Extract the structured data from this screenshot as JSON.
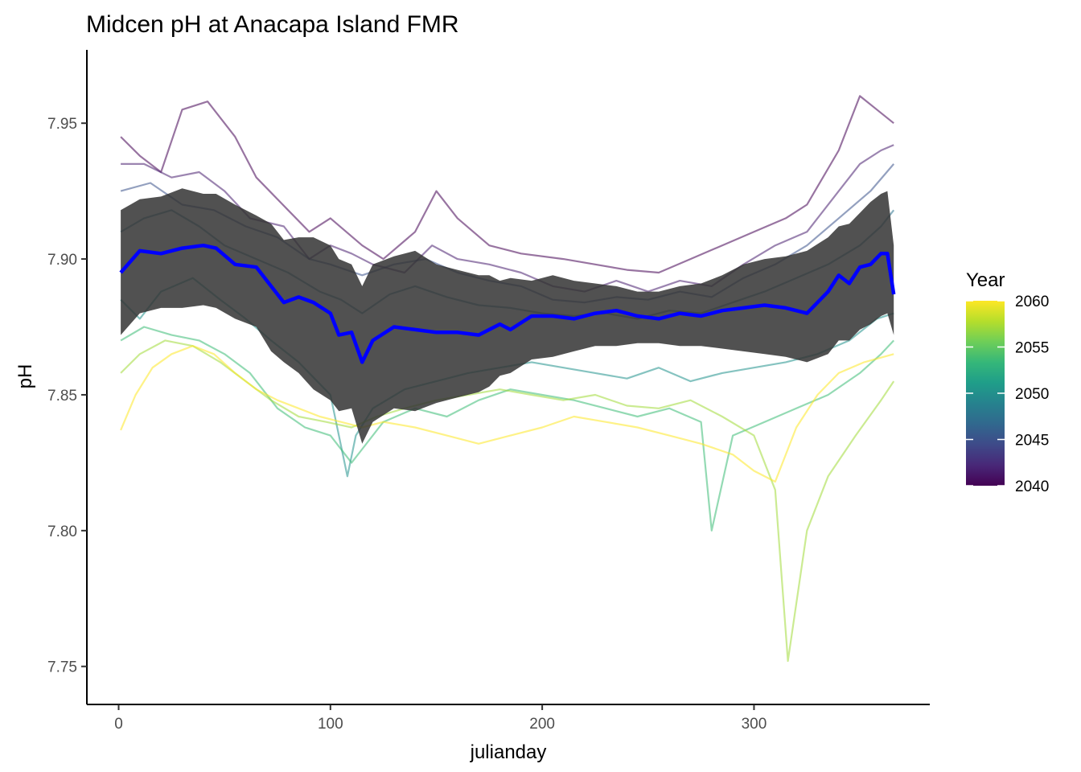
{
  "chart_data": {
    "type": "line",
    "title": "Midcen pH at Anacapa Island FMR",
    "xlabel": "julianday",
    "ylabel": "pH",
    "xlim": [
      -15,
      383
    ],
    "ylim": [
      7.736,
      7.977
    ],
    "x_ticks": [
      0,
      100,
      200,
      300
    ],
    "x_tick_labels": [
      "0",
      "100",
      "200",
      "300"
    ],
    "y_ticks": [
      7.75,
      7.8,
      7.85,
      7.9,
      7.95
    ],
    "y_tick_labels": [
      "7.75",
      "7.80",
      "7.85",
      "7.90",
      "7.95"
    ],
    "grid": false,
    "legend": {
      "title": "Year",
      "position": "right",
      "type": "colorbar",
      "range": [
        2040,
        2060
      ],
      "ticks": [
        "2040",
        "2045",
        "2050",
        "2055",
        "2060"
      ],
      "palette": [
        "#440154",
        "#482878",
        "#3e4a89",
        "#31688e",
        "#26828e",
        "#1f9e89",
        "#35b779",
        "#6ece58",
        "#b5de2b",
        "#fde725"
      ]
    },
    "series": [
      {
        "kind": "mean",
        "color": "#0000ff",
        "x": [
          1,
          10,
          20,
          30,
          40,
          46,
          55,
          65,
          72,
          78,
          85,
          92,
          100,
          104,
          110,
          115,
          120,
          130,
          140,
          150,
          160,
          170,
          175,
          180,
          185,
          195,
          205,
          215,
          225,
          235,
          245,
          255,
          265,
          275,
          285,
          295,
          305,
          315,
          325,
          335,
          340,
          345,
          350,
          355,
          360,
          363,
          366
        ],
        "y": [
          7.895,
          7.903,
          7.902,
          7.904,
          7.905,
          7.904,
          7.898,
          7.897,
          7.89,
          7.884,
          7.886,
          7.884,
          7.88,
          7.872,
          7.873,
          7.862,
          7.87,
          7.875,
          7.874,
          7.873,
          7.873,
          7.872,
          7.874,
          7.876,
          7.874,
          7.879,
          7.879,
          7.878,
          7.88,
          7.881,
          7.879,
          7.878,
          7.88,
          7.879,
          7.881,
          7.882,
          7.883,
          7.882,
          7.88,
          7.888,
          7.894,
          7.891,
          7.897,
          7.898,
          7.902,
          7.902,
          7.887
        ]
      },
      {
        "kind": "ribbon",
        "color": "#333333",
        "x": [
          1,
          10,
          20,
          30,
          40,
          46,
          55,
          65,
          72,
          78,
          85,
          92,
          100,
          104,
          110,
          115,
          120,
          130,
          140,
          150,
          160,
          170,
          175,
          180,
          185,
          195,
          205,
          215,
          225,
          235,
          245,
          255,
          265,
          275,
          285,
          295,
          305,
          315,
          325,
          335,
          340,
          345,
          350,
          355,
          360,
          363,
          366
        ],
        "upper": [
          7.918,
          7.922,
          7.923,
          7.926,
          7.924,
          7.924,
          7.92,
          7.916,
          7.913,
          7.907,
          7.908,
          7.908,
          7.905,
          7.9,
          7.898,
          7.89,
          7.898,
          7.901,
          7.903,
          7.898,
          7.896,
          7.894,
          7.894,
          7.892,
          7.893,
          7.892,
          7.894,
          7.892,
          7.891,
          7.89,
          7.888,
          7.888,
          7.89,
          7.891,
          7.894,
          7.898,
          7.9,
          7.901,
          7.903,
          7.908,
          7.912,
          7.913,
          7.917,
          7.921,
          7.924,
          7.925,
          7.905
        ],
        "lower": [
          7.872,
          7.88,
          7.882,
          7.882,
          7.883,
          7.882,
          7.878,
          7.875,
          7.866,
          7.862,
          7.858,
          7.852,
          7.848,
          7.844,
          7.845,
          7.832,
          7.84,
          7.845,
          7.844,
          7.847,
          7.849,
          7.851,
          7.853,
          7.857,
          7.858,
          7.863,
          7.864,
          7.866,
          7.868,
          7.868,
          7.869,
          7.869,
          7.868,
          7.868,
          7.867,
          7.866,
          7.865,
          7.864,
          7.862,
          7.865,
          7.87,
          7.87,
          7.874,
          7.876,
          7.879,
          7.88,
          7.872
        ]
      },
      {
        "kind": "year",
        "year": 2041,
        "color": "#440154",
        "x": [
          1,
          10,
          20,
          30,
          42,
          55,
          65,
          80,
          90,
          100,
          115,
          125,
          140,
          150,
          160,
          175,
          190,
          210,
          225,
          240,
          255,
          270,
          285,
          300,
          315,
          325,
          340,
          350,
          358,
          366
        ],
        "y": [
          7.945,
          7.938,
          7.932,
          7.955,
          7.958,
          7.945,
          7.93,
          7.918,
          7.91,
          7.915,
          7.905,
          7.9,
          7.91,
          7.925,
          7.915,
          7.905,
          7.902,
          7.9,
          7.898,
          7.896,
          7.895,
          7.9,
          7.905,
          7.91,
          7.915,
          7.92,
          7.94,
          7.96,
          7.955,
          7.95
        ]
      },
      {
        "kind": "year",
        "year": 2043,
        "color": "#481f70",
        "x": [
          1,
          12,
          25,
          38,
          50,
          62,
          78,
          90,
          100,
          110,
          120,
          135,
          148,
          160,
          175,
          190,
          205,
          220,
          235,
          250,
          265,
          280,
          295,
          310,
          325,
          340,
          350,
          360,
          366
        ],
        "y": [
          7.935,
          7.935,
          7.93,
          7.932,
          7.925,
          7.915,
          7.912,
          7.9,
          7.905,
          7.902,
          7.898,
          7.895,
          7.905,
          7.9,
          7.898,
          7.895,
          7.89,
          7.888,
          7.892,
          7.888,
          7.892,
          7.89,
          7.898,
          7.905,
          7.91,
          7.925,
          7.935,
          7.94,
          7.942
        ]
      },
      {
        "kind": "year",
        "year": 2045,
        "color": "#3b528b",
        "x": [
          1,
          15,
          30,
          45,
          60,
          75,
          90,
          100,
          115,
          130,
          145,
          160,
          175,
          190,
          205,
          220,
          235,
          250,
          265,
          280,
          295,
          310,
          325,
          340,
          355,
          366
        ],
        "y": [
          7.925,
          7.928,
          7.92,
          7.918,
          7.912,
          7.908,
          7.9,
          7.898,
          7.894,
          7.898,
          7.9,
          7.895,
          7.892,
          7.89,
          7.885,
          7.884,
          7.886,
          7.885,
          7.888,
          7.886,
          7.893,
          7.898,
          7.905,
          7.915,
          7.925,
          7.935
        ]
      },
      {
        "kind": "year",
        "year": 2048,
        "color": "#2c728e",
        "x": [
          1,
          12,
          25,
          38,
          50,
          65,
          80,
          95,
          105,
          115,
          128,
          140,
          155,
          170,
          185,
          200,
          215,
          230,
          245,
          260,
          275,
          290,
          305,
          320,
          335,
          350,
          360,
          366
        ],
        "y": [
          7.91,
          7.915,
          7.918,
          7.912,
          7.905,
          7.9,
          7.895,
          7.888,
          7.885,
          7.88,
          7.887,
          7.89,
          7.886,
          7.883,
          7.882,
          7.88,
          7.879,
          7.88,
          7.878,
          7.881,
          7.88,
          7.884,
          7.888,
          7.893,
          7.898,
          7.905,
          7.912,
          7.918
        ]
      },
      {
        "kind": "year",
        "year": 2051,
        "color": "#21918c",
        "x": [
          1,
          10,
          20,
          35,
          48,
          60,
          72,
          85,
          100,
          108,
          112,
          120,
          135,
          150,
          165,
          180,
          195,
          210,
          225,
          240,
          255,
          270,
          285,
          300,
          315,
          330,
          345,
          358,
          366
        ],
        "y": [
          7.885,
          7.878,
          7.888,
          7.893,
          7.885,
          7.878,
          7.87,
          7.862,
          7.85,
          7.82,
          7.835,
          7.845,
          7.852,
          7.855,
          7.858,
          7.86,
          7.862,
          7.86,
          7.858,
          7.856,
          7.86,
          7.855,
          7.858,
          7.86,
          7.862,
          7.865,
          7.87,
          7.878,
          7.88
        ]
      },
      {
        "kind": "year",
        "year": 2054,
        "color": "#3bbb75",
        "x": [
          1,
          12,
          25,
          38,
          50,
          62,
          75,
          88,
          100,
          110,
          115,
          125,
          140,
          155,
          170,
          185,
          200,
          215,
          230,
          245,
          260,
          275,
          280,
          290,
          305,
          320,
          335,
          350,
          360,
          366
        ],
        "y": [
          7.87,
          7.875,
          7.872,
          7.87,
          7.865,
          7.858,
          7.845,
          7.838,
          7.835,
          7.825,
          7.83,
          7.84,
          7.845,
          7.842,
          7.848,
          7.852,
          7.85,
          7.848,
          7.845,
          7.842,
          7.845,
          7.84,
          7.8,
          7.835,
          7.84,
          7.845,
          7.85,
          7.858,
          7.865,
          7.87
        ]
      },
      {
        "kind": "year",
        "year": 2057,
        "color": "#a0da39",
        "x": [
          1,
          10,
          22,
          35,
          48,
          60,
          72,
          85,
          98,
          110,
          122,
          135,
          150,
          165,
          180,
          195,
          210,
          225,
          240,
          255,
          270,
          285,
          300,
          310,
          316,
          325,
          335,
          348,
          360,
          366
        ],
        "y": [
          7.858,
          7.865,
          7.87,
          7.868,
          7.862,
          7.855,
          7.848,
          7.842,
          7.84,
          7.838,
          7.842,
          7.845,
          7.848,
          7.85,
          7.852,
          7.85,
          7.848,
          7.85,
          7.846,
          7.845,
          7.848,
          7.842,
          7.835,
          7.815,
          7.752,
          7.8,
          7.82,
          7.835,
          7.848,
          7.855
        ]
      },
      {
        "kind": "year",
        "year": 2060,
        "color": "#fde725",
        "x": [
          1,
          8,
          16,
          25,
          35,
          45,
          55,
          65,
          75,
          85,
          95,
          105,
          115,
          125,
          140,
          155,
          170,
          185,
          200,
          215,
          230,
          245,
          260,
          275,
          290,
          300,
          310,
          320,
          330,
          340,
          352,
          366
        ],
        "y": [
          7.837,
          7.85,
          7.86,
          7.865,
          7.868,
          7.865,
          7.858,
          7.852,
          7.848,
          7.845,
          7.842,
          7.84,
          7.838,
          7.84,
          7.838,
          7.835,
          7.832,
          7.835,
          7.838,
          7.842,
          7.84,
          7.838,
          7.835,
          7.832,
          7.828,
          7.822,
          7.818,
          7.838,
          7.85,
          7.858,
          7.862,
          7.865
        ]
      }
    ]
  }
}
